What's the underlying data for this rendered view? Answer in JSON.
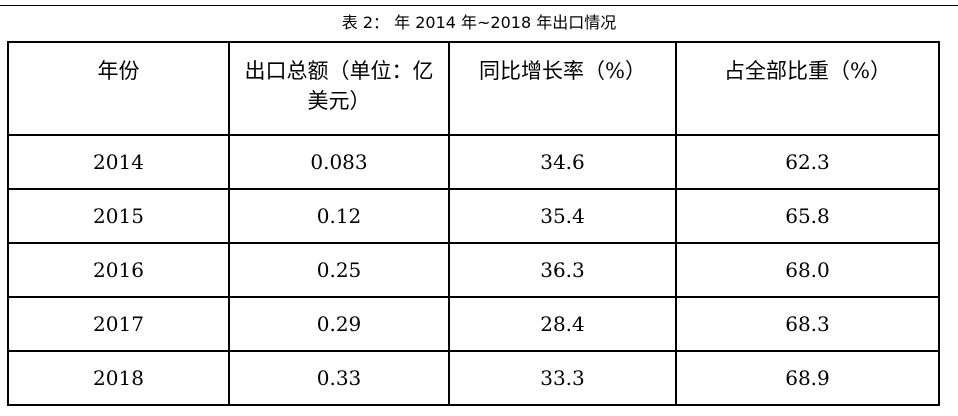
{
  "caption": "表 2： 年 2014 年~2018 年出口情况",
  "table": {
    "headers": [
      "年份",
      "出口总额（单位：亿美元）",
      "同比增长率（%）",
      "占全部比重（%）"
    ],
    "rows": [
      [
        "2014",
        "0.083",
        "34.6",
        "62.3"
      ],
      [
        "2015",
        "0.12",
        "35.4",
        "65.8"
      ],
      [
        "2016",
        "0.25",
        "36.3",
        "68.0"
      ],
      [
        "2017",
        "0.29",
        "28.4",
        "68.3"
      ],
      [
        "2018",
        "0.33",
        "33.3",
        "68.9"
      ]
    ]
  }
}
